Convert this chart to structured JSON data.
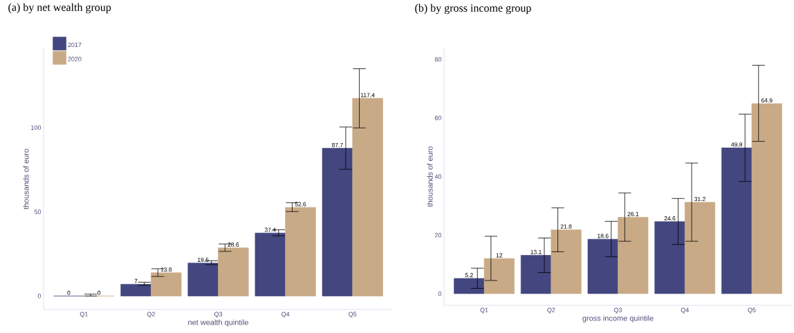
{
  "chart_data": [
    {
      "type": "bar",
      "title": "(a) by net wealth group",
      "xlabel": "net wealth quintile",
      "ylabel": "thousands of euro",
      "categories": [
        "Q1",
        "Q2",
        "Q3",
        "Q4",
        "Q5"
      ],
      "ylim": [
        -8,
        147
      ],
      "yticks": [
        0,
        50,
        100
      ],
      "data_labels": true,
      "legend": "top left",
      "series": [
        {
          "name": "2017",
          "color": "#43467f",
          "values": [
            0,
            7,
            19.6,
            37.4,
            87.7
          ],
          "errors": [
            null,
            [
              6.4,
              8.2
            ],
            [
              18.6,
              20.9
            ],
            [
              35.7,
              39.3
            ],
            [
              75.2,
              100.3
            ]
          ]
        },
        {
          "name": "2020",
          "color": "#c9aa86",
          "values": [
            0,
            13.8,
            28.6,
            52.6,
            117.4
          ],
          "errors": [
            [
              0,
              1.1
            ],
            [
              11.6,
              16.2
            ],
            [
              26.5,
              30.9
            ],
            [
              50.1,
              55.4
            ],
            [
              99.8,
              134.9
            ]
          ]
        }
      ]
    },
    {
      "type": "bar",
      "title": "(b) by gross income group",
      "xlabel": "gross income quintile",
      "ylabel": "thousands of euro",
      "categories": [
        "Q1",
        "Q2",
        "Q3",
        "Q4",
        "Q5"
      ],
      "ylim": [
        -4,
        84
      ],
      "yticks": [
        0,
        20,
        40,
        60,
        80
      ],
      "data_labels": true,
      "series": [
        {
          "color": "#43467f",
          "values": [
            5.2,
            13.1,
            18.6,
            24.6,
            49.8
          ],
          "errors": [
            [
              1.8,
              8.7
            ],
            [
              7.2,
              19.0
            ],
            [
              12.6,
              24.7
            ],
            [
              16.8,
              32.5
            ],
            [
              38.3,
              61.3
            ]
          ]
        },
        {
          "color": "#c9aa86",
          "values": [
            12,
            21.8,
            26.1,
            31.2,
            64.9
          ],
          "errors": [
            [
              4.5,
              19.6
            ],
            [
              14.3,
              29.3
            ],
            [
              17.9,
              34.4
            ],
            [
              17.9,
              44.6
            ],
            [
              52.0,
              78.0
            ]
          ]
        }
      ]
    }
  ]
}
